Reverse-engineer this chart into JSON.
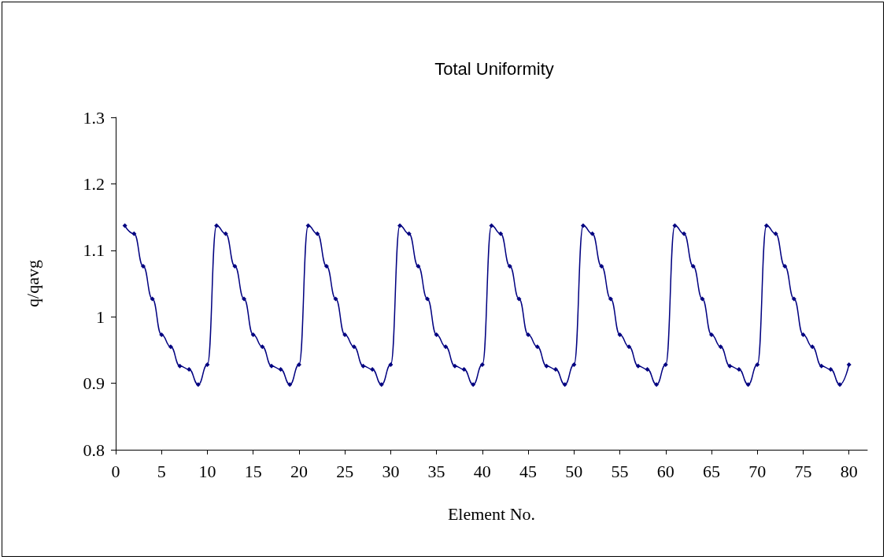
{
  "chart_data": {
    "type": "line",
    "title": "Total Uniformity",
    "xlabel": "Element No.",
    "ylabel": "q/qavg",
    "x": [
      1,
      2,
      3,
      4,
      5,
      6,
      7,
      8,
      9,
      10,
      11,
      12,
      13,
      14,
      15,
      16,
      17,
      18,
      19,
      20,
      21,
      22,
      23,
      24,
      25,
      26,
      27,
      28,
      29,
      30,
      31,
      32,
      33,
      34,
      35,
      36,
      37,
      38,
      39,
      40,
      41,
      42,
      43,
      44,
      45,
      46,
      47,
      48,
      49,
      50,
      51,
      52,
      53,
      54,
      55,
      56,
      57,
      58,
      59,
      60,
      61,
      62,
      63,
      64,
      65,
      66,
      67,
      68,
      69,
      70,
      71,
      72,
      73,
      74,
      75,
      76,
      77,
      78,
      79,
      80
    ],
    "series": [
      {
        "color": "#000080",
        "values": [
          1.137,
          1.125,
          1.076,
          1.027,
          0.973,
          0.955,
          0.926,
          0.921,
          0.898,
          0.928,
          1.137,
          1.125,
          1.076,
          1.027,
          0.973,
          0.955,
          0.926,
          0.921,
          0.898,
          0.928,
          1.137,
          1.125,
          1.076,
          1.027,
          0.973,
          0.955,
          0.926,
          0.921,
          0.898,
          0.928,
          1.137,
          1.125,
          1.076,
          1.027,
          0.973,
          0.955,
          0.926,
          0.921,
          0.898,
          0.928,
          1.137,
          1.125,
          1.076,
          1.027,
          0.973,
          0.955,
          0.926,
          0.921,
          0.898,
          0.928,
          1.137,
          1.125,
          1.076,
          1.027,
          0.973,
          0.955,
          0.926,
          0.921,
          0.898,
          0.928,
          1.137,
          1.125,
          1.076,
          1.027,
          0.973,
          0.955,
          0.926,
          0.921,
          0.898,
          0.928,
          1.137,
          1.125,
          1.076,
          1.027,
          0.973,
          0.955,
          0.926,
          0.921,
          0.898,
          0.928
        ]
      }
    ],
    "xlim": [
      0,
      82
    ],
    "xticks": [
      0,
      5,
      10,
      15,
      20,
      25,
      30,
      35,
      40,
      45,
      50,
      55,
      60,
      65,
      70,
      75,
      80
    ],
    "ylim": [
      0.8,
      1.3
    ],
    "yticks": [
      0.8,
      0.9,
      1,
      1.1,
      1.2,
      1.3
    ],
    "grid": false,
    "marker": "diamond",
    "line_style": "solid"
  }
}
